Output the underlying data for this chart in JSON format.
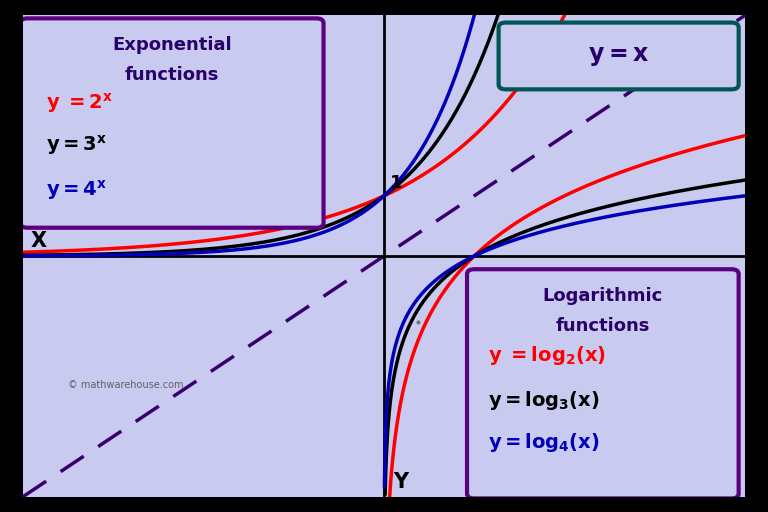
{
  "bg_color": "#c8caef",
  "black_border": "#000000",
  "curve_colors": {
    "base2": "#ff0000",
    "base3": "#000000",
    "base4": "#0000bb"
  },
  "dashed_color": "#3a006f",
  "exp_box_edge": "#5a0080",
  "log_box_edge": "#5a0080",
  "yx_box_edge": "#005555",
  "text_dark_purple": "#2a006a",
  "watermark": "© mathwarehouse.com",
  "xlim": [
    -4.0,
    4.0
  ],
  "ylim": [
    -4.0,
    4.0
  ]
}
